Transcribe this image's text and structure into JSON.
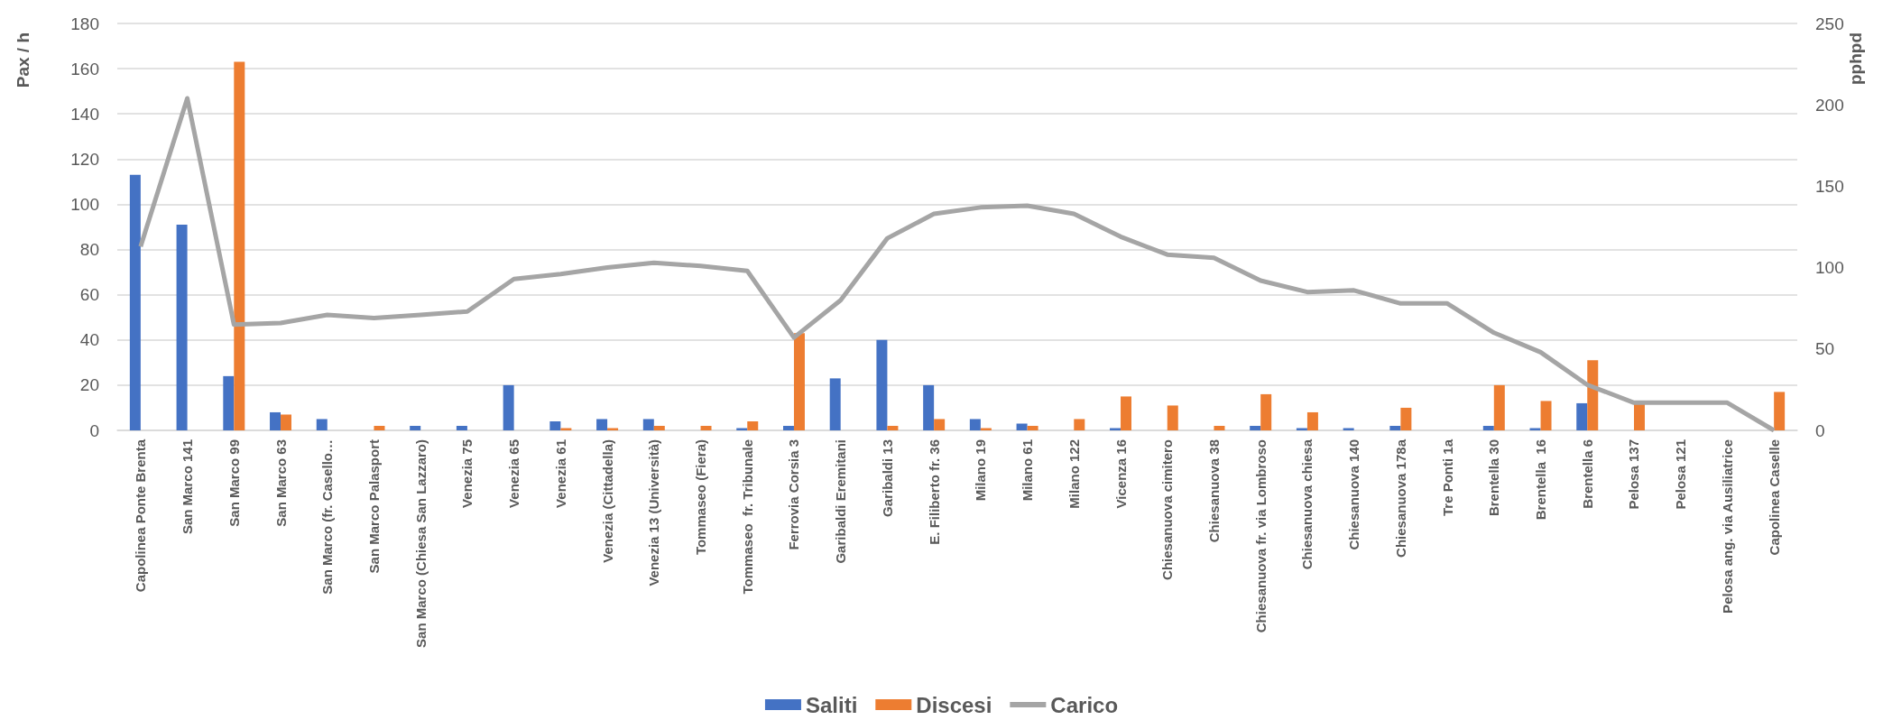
{
  "chart_data": {
    "type": "bar",
    "ylabel": "Pax / h",
    "y2label": "pphpd",
    "categories": [
      "Capolinea Ponte Brenta",
      "San Marco 141",
      "San Marco 99",
      "San Marco 63",
      "San Marco (fr. Casello…",
      "San Marco Palasport",
      "San Marco (Chiesa San Lazzaro)",
      "Venezia 75",
      "Venezia 65",
      "Venezia 61",
      "Venezia (Cittadella)",
      "Venezia 13 (Università)",
      "Tommaseo (Fiera)",
      "Tommaseo  fr. Tribunale",
      "Ferrovia Corsia 3",
      "Garibaldi Eremitani",
      "Garibaldi 13",
      "E. Filiberto fr. 36",
      "Milano 19",
      "Milano 61",
      "Milano 122",
      "Vicenza 16",
      "Chiesanuova cimitero",
      "Chiesanuova 38",
      "Chiesanuova fr. via Lombroso",
      "Chiesanuova chiesa",
      "Chiesanuova 140",
      "Chiesanuova 178a",
      "Tre Ponti 1a",
      "Brentella 30",
      "Brentella  16",
      "Brentella 6",
      "Pelosa 137",
      "Pelosa 121",
      "Pelosa ang. via Ausiliatrice",
      "Capolinea Caselle"
    ],
    "series": [
      {
        "name": "Saliti",
        "color": "#4472c4",
        "values": [
          113,
          91,
          24,
          8,
          5,
          0,
          2,
          2,
          20,
          4,
          5,
          5,
          0,
          1,
          2,
          23,
          40,
          20,
          5,
          3,
          0,
          1,
          0,
          0,
          2,
          1,
          1,
          2,
          0,
          2,
          1,
          12,
          0,
          0,
          0,
          0
        ]
      },
      {
        "name": "Discesi",
        "color": "#ed7d31",
        "values": [
          0,
          0,
          163,
          7,
          0,
          2,
          0,
          0,
          0,
          1,
          1,
          2,
          2,
          4,
          43,
          0,
          2,
          5,
          1,
          2,
          5,
          15,
          11,
          2,
          16,
          8,
          0,
          10,
          0,
          20,
          13,
          31,
          12,
          0,
          0,
          17
        ]
      },
      {
        "name": "Carico",
        "type": "line",
        "axis": "y2",
        "color": "#a5a5a5",
        "values": [
          113,
          204,
          65,
          66,
          71,
          69,
          71,
          73,
          93,
          96,
          100,
          103,
          101,
          98,
          57,
          80,
          118,
          133,
          137,
          138,
          133,
          119,
          108,
          106,
          92,
          85,
          86,
          78,
          78,
          60,
          48,
          28,
          17,
          17,
          17,
          0
        ]
      }
    ],
    "ylim": [
      0,
      180
    ],
    "yticks": [
      0,
      20,
      40,
      60,
      80,
      100,
      120,
      140,
      160,
      180
    ],
    "y2lim": [
      0,
      250
    ],
    "y2ticks": [
      0,
      50,
      100,
      150,
      200,
      250
    ],
    "grid": "y",
    "legend": "bottom",
    "marker": "none"
  }
}
